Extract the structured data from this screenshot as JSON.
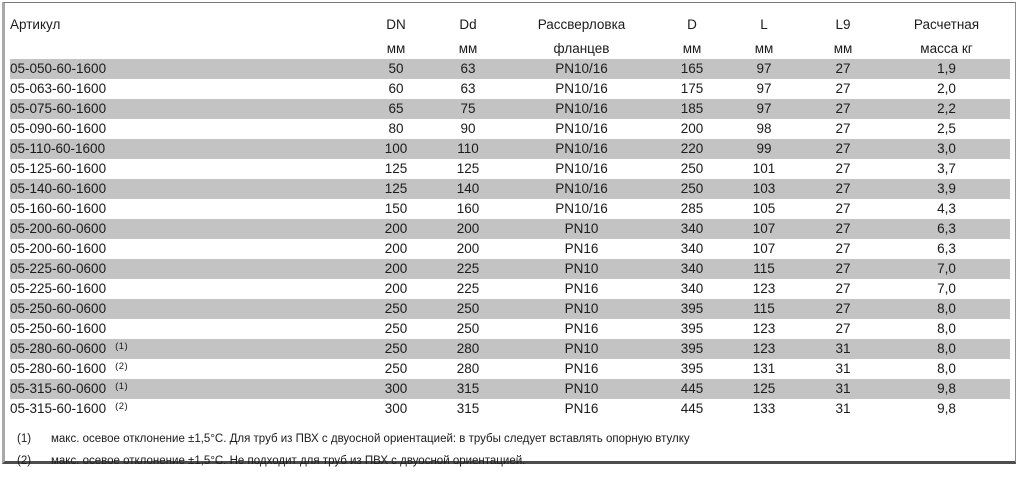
{
  "table": {
    "columns": [
      {
        "label": "Артикул",
        "sub": ""
      },
      {
        "label": "DN",
        "sub": "мм"
      },
      {
        "label": "Dd",
        "sub": "мм"
      },
      {
        "label": "Рассверловка",
        "sub": "фланцев"
      },
      {
        "label": "D",
        "sub": "мм"
      },
      {
        "label": "L",
        "sub": "мм"
      },
      {
        "label": "L9",
        "sub": "мм"
      },
      {
        "label": "Расчетная",
        "sub": "масса кг"
      }
    ],
    "rows": [
      [
        "05-050-60-1600",
        "",
        "50",
        "63",
        "PN10/16",
        "165",
        "97",
        "27",
        "1,9"
      ],
      [
        "05-063-60-1600",
        "",
        "60",
        "63",
        "PN10/16",
        "175",
        "97",
        "27",
        "2,0"
      ],
      [
        "05-075-60-1600",
        "",
        "65",
        "75",
        "PN10/16",
        "185",
        "97",
        "27",
        "2,2"
      ],
      [
        "05-090-60-1600",
        "",
        "80",
        "90",
        "PN10/16",
        "200",
        "98",
        "27",
        "2,5"
      ],
      [
        "05-110-60-1600",
        "",
        "100",
        "110",
        "PN10/16",
        "220",
        "99",
        "27",
        "3,0"
      ],
      [
        "05-125-60-1600",
        "",
        "125",
        "125",
        "PN10/16",
        "250",
        "101",
        "27",
        "3,7"
      ],
      [
        "05-140-60-1600",
        "",
        "125",
        "140",
        "PN10/16",
        "250",
        "103",
        "27",
        "3,9"
      ],
      [
        "05-160-60-1600",
        "",
        "150",
        "160",
        "PN10/16",
        "285",
        "105",
        "27",
        "4,3"
      ],
      [
        "05-200-60-0600",
        "",
        "200",
        "200",
        "PN10",
        "340",
        "107",
        "27",
        "6,3"
      ],
      [
        "05-200-60-1600",
        "",
        "200",
        "200",
        "PN16",
        "340",
        "107",
        "27",
        "6,3"
      ],
      [
        "05-225-60-0600",
        "",
        "200",
        "225",
        "PN10",
        "340",
        "115",
        "27",
        "7,0"
      ],
      [
        "05-225-60-1600",
        "",
        "200",
        "225",
        "PN16",
        "340",
        "123",
        "27",
        "7,0"
      ],
      [
        "05-250-60-0600",
        "",
        "250",
        "250",
        "PN10",
        "395",
        "115",
        "27",
        "8,0"
      ],
      [
        "05-250-60-1600",
        "",
        "250",
        "250",
        "PN16",
        "395",
        "123",
        "27",
        "8,0"
      ],
      [
        "05-280-60-0600",
        "(1)",
        "250",
        "280",
        "PN10",
        "395",
        "123",
        "31",
        "8,0"
      ],
      [
        "05-280-60-1600",
        "(2)",
        "250",
        "280",
        "PN16",
        "395",
        "131",
        "31",
        "8,0"
      ],
      [
        "05-315-60-0600",
        "(1)",
        "300",
        "315",
        "PN10",
        "445",
        "125",
        "31",
        "9,8"
      ],
      [
        "05-315-60-1600",
        "(2)",
        "300",
        "315",
        "PN16",
        "445",
        "133",
        "31",
        "9,8"
      ]
    ],
    "stripe_color": "#c3c3c3",
    "text_color": "#1b1b1b"
  },
  "footnotes": [
    {
      "mark": "(1)",
      "text": "макс. осевое отклонение ±1,5°C. Для труб из ПВХ с двуосной ориентацией: в трубы следует вставлять опорную втулку"
    },
    {
      "mark": "(2)",
      "text": "макс. осевое отклонение ±1,5°C. Не подходит для труб из ПВХ с двуосной ориентацией."
    }
  ]
}
